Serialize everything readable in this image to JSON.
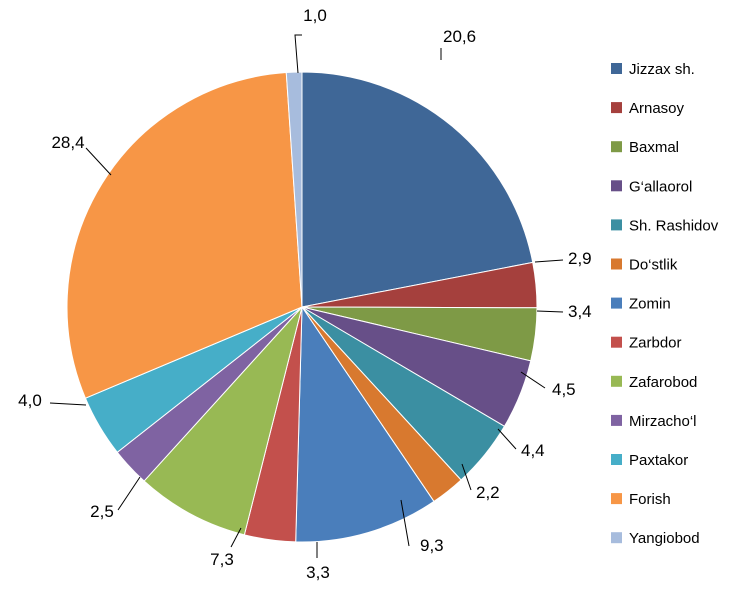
{
  "chart_data": {
    "type": "pie",
    "title": "",
    "categories": [
      "Jizzax sh.",
      "Arnasoy",
      "Baxmal",
      "G‘allaorol",
      "Sh. Rashidov",
      "Do‘stlik",
      "Zomin",
      "Zarbdor",
      "Zafarobod",
      "Mirzacho‘l",
      "Paxtakor",
      "Forish",
      "Yangiobod"
    ],
    "values": [
      20.6,
      2.9,
      3.4,
      4.5,
      4.4,
      2.2,
      9.3,
      3.3,
      7.3,
      2.5,
      4.0,
      28.4,
      1.0
    ],
    "value_labels": [
      "20,6",
      "2,9",
      "3,4",
      "4,5",
      "4,4",
      "2,2",
      "9,3",
      "3,3",
      "7,3",
      "2,5",
      "4,0",
      "28,4",
      "1,0"
    ],
    "colors": [
      "#3F6797",
      "#A5403D",
      "#7E9A46",
      "#674F88",
      "#3B8FA2",
      "#D8792F",
      "#4A7EBB",
      "#C3504C",
      "#98B954",
      "#7F63A2",
      "#46AEC8",
      "#F79646",
      "#A7BCDD"
    ],
    "legend_position": "right"
  }
}
